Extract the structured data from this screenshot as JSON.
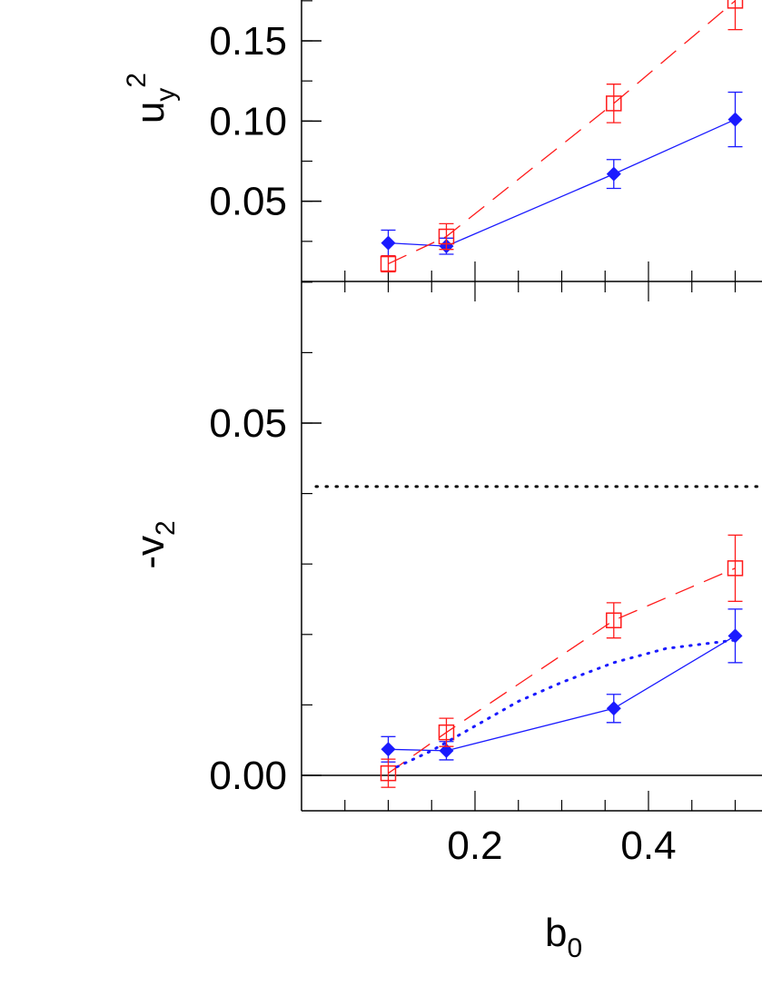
{
  "colors": {
    "diamond_series": "#1a1aff",
    "square_series": "#ff1a1a",
    "axis": "#000000"
  },
  "chart_data": [
    {
      "panel": "top",
      "type": "line",
      "ylabel": {
        "base": "u",
        "sub": "y",
        "sup": "2"
      },
      "xlim": [
        0,
        0.6
      ],
      "ylim": [
        0.0,
        0.175
      ],
      "yticks": [
        {
          "value": 0.05,
          "label": "0.05"
        },
        {
          "value": 0.1,
          "label": "0.10"
        },
        {
          "value": 0.15,
          "label": "0.15"
        }
      ],
      "series": [
        {
          "marker": "diamond-filled",
          "line": "solid",
          "color": "#1a1aff",
          "x": [
            0.1,
            0.167,
            0.36,
            0.5
          ],
          "y": [
            0.024,
            0.022,
            0.067,
            0.101
          ],
          "err": [
            0.008,
            0.005,
            0.009,
            0.017
          ]
        },
        {
          "marker": "square-open",
          "line": "dashed",
          "color": "#ff1a1a",
          "x": [
            0.1,
            0.167,
            0.36,
            0.5
          ],
          "y": [
            0.011,
            0.028,
            0.111,
            0.175
          ],
          "err": [
            0.005,
            0.008,
            0.012,
            0.018
          ]
        }
      ]
    },
    {
      "panel": "bottom",
      "type": "line",
      "ylabel": {
        "base": "-v",
        "sub": "2"
      },
      "xlabel": {
        "base": "b",
        "sub": "0"
      },
      "xlim": [
        0,
        0.6
      ],
      "ylim": [
        -0.005,
        0.07
      ],
      "xticks": [
        {
          "value": 0.2,
          "label": "0.2"
        },
        {
          "value": 0.4,
          "label": "0.4"
        }
      ],
      "yticks": [
        {
          "value": 0.0,
          "label": "0.00"
        },
        {
          "value": 0.05,
          "label": "0.05"
        }
      ],
      "zero_line": 0.0,
      "reference_line": {
        "y": 0.041,
        "style": "dotted",
        "color": "#000000"
      },
      "series": [
        {
          "marker": "diamond-filled",
          "line": "solid",
          "color": "#1a1aff",
          "x": [
            0.1,
            0.167,
            0.36,
            0.5
          ],
          "y": [
            0.0037,
            0.0035,
            0.0095,
            0.0198
          ],
          "err": [
            0.0018,
            0.0013,
            0.002,
            0.0038
          ]
        },
        {
          "marker": "square-open",
          "line": "dashed",
          "color": "#ff1a1a",
          "x": [
            0.1,
            0.167,
            0.36,
            0.5
          ],
          "y": [
            0.0003,
            0.0061,
            0.022,
            0.0294
          ],
          "err": [
            0.002,
            0.002,
            0.0025,
            0.0047
          ]
        },
        {
          "marker": "none",
          "line": "dotted",
          "color": "#1a1aff",
          "x": [
            0.11,
            0.15,
            0.2,
            0.25,
            0.3,
            0.36,
            0.42,
            0.5
          ],
          "y": [
            0.0012,
            0.0035,
            0.007,
            0.0105,
            0.0132,
            0.016,
            0.018,
            0.0192
          ]
        }
      ]
    }
  ]
}
